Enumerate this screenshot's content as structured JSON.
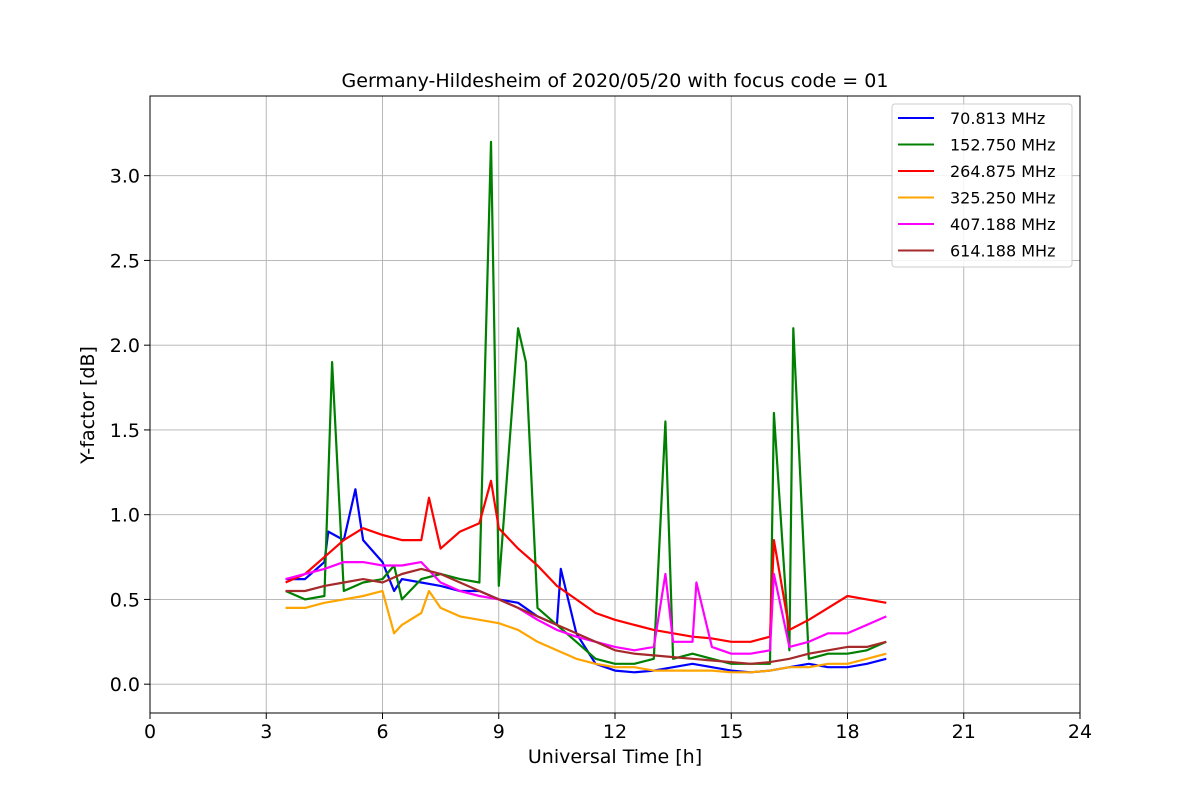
{
  "chart_data": {
    "type": "line",
    "title": "Germany-Hildesheim of 2020/05/20 with focus code = 01",
    "xlabel": "Universal Time [h]",
    "ylabel": "Y-factor [dB]",
    "xlim": [
      0,
      24
    ],
    "ylim": [
      -0.17,
      3.47
    ],
    "xticks": [
      0,
      3,
      6,
      9,
      12,
      15,
      18,
      21,
      24
    ],
    "xtick_labels": [
      "0",
      "3",
      "6",
      "9",
      "12",
      "15",
      "18",
      "21",
      "24"
    ],
    "yticks": [
      0.0,
      0.5,
      1.0,
      1.5,
      2.0,
      2.5,
      3.0
    ],
    "ytick_labels": [
      "0.0",
      "0.5",
      "1.0",
      "1.5",
      "2.0",
      "2.5",
      "3.0"
    ],
    "grid": true,
    "legend_position": "top-right",
    "series": [
      {
        "name": " 70.813 MHz",
        "color": "#0000ff",
        "x": [
          3.5,
          4.0,
          4.5,
          4.6,
          5.0,
          5.3,
          5.5,
          6.0,
          6.3,
          6.5,
          7.0,
          7.5,
          8.0,
          8.5,
          9.0,
          9.5,
          10.0,
          10.5,
          10.6,
          11.0,
          11.5,
          12.0,
          12.5,
          13.0,
          13.5,
          14.0,
          14.5,
          15.0,
          15.5,
          16.0,
          16.5,
          17.0,
          17.5,
          18.0,
          18.5,
          19.0
        ],
        "y": [
          0.62,
          0.62,
          0.72,
          0.9,
          0.85,
          1.15,
          0.85,
          0.72,
          0.55,
          0.62,
          0.6,
          0.58,
          0.55,
          0.55,
          0.5,
          0.48,
          0.4,
          0.35,
          0.68,
          0.3,
          0.12,
          0.08,
          0.07,
          0.08,
          0.1,
          0.12,
          0.1,
          0.08,
          0.07,
          0.08,
          0.1,
          0.12,
          0.1,
          0.1,
          0.12,
          0.15
        ]
      },
      {
        "name": "152.750 MHz",
        "color": "#008000",
        "x": [
          3.5,
          4.0,
          4.5,
          4.7,
          5.0,
          5.5,
          6.0,
          6.3,
          6.5,
          7.0,
          7.5,
          8.0,
          8.5,
          8.8,
          9.0,
          9.5,
          9.7,
          10.0,
          10.5,
          11.0,
          11.5,
          12.0,
          12.5,
          13.0,
          13.3,
          13.5,
          14.0,
          14.5,
          15.0,
          15.5,
          16.0,
          16.1,
          16.5,
          16.6,
          17.0,
          17.5,
          18.0,
          18.5,
          19.0
        ],
        "y": [
          0.55,
          0.5,
          0.52,
          1.9,
          0.55,
          0.6,
          0.62,
          0.7,
          0.5,
          0.62,
          0.65,
          0.62,
          0.6,
          3.2,
          0.58,
          2.1,
          1.9,
          0.45,
          0.35,
          0.25,
          0.15,
          0.12,
          0.12,
          0.15,
          1.55,
          0.15,
          0.18,
          0.15,
          0.12,
          0.12,
          0.12,
          1.6,
          0.2,
          2.1,
          0.15,
          0.18,
          0.18,
          0.2,
          0.25
        ]
      },
      {
        "name": "264.875 MHz",
        "color": "#ff0000",
        "x": [
          3.5,
          4.0,
          4.5,
          5.0,
          5.5,
          6.0,
          6.5,
          7.0,
          7.2,
          7.5,
          8.0,
          8.5,
          8.8,
          9.0,
          9.5,
          10.0,
          10.5,
          11.0,
          11.5,
          12.0,
          12.5,
          13.0,
          13.5,
          14.0,
          14.5,
          15.0,
          15.5,
          16.0,
          16.1,
          16.5,
          17.0,
          17.5,
          18.0,
          18.5,
          19.0
        ],
        "y": [
          0.6,
          0.65,
          0.75,
          0.85,
          0.92,
          0.88,
          0.85,
          0.85,
          1.1,
          0.8,
          0.9,
          0.95,
          1.2,
          0.92,
          0.8,
          0.7,
          0.58,
          0.5,
          0.42,
          0.38,
          0.35,
          0.32,
          0.3,
          0.28,
          0.27,
          0.25,
          0.25,
          0.28,
          0.85,
          0.32,
          0.38,
          0.45,
          0.52,
          0.5,
          0.48
        ]
      },
      {
        "name": "325.250 MHz",
        "color": "#ffa500",
        "x": [
          3.5,
          4.0,
          4.5,
          5.0,
          5.5,
          6.0,
          6.3,
          6.5,
          7.0,
          7.2,
          7.5,
          8.0,
          8.5,
          9.0,
          9.5,
          10.0,
          10.5,
          11.0,
          11.5,
          12.0,
          12.5,
          13.0,
          13.5,
          14.0,
          14.5,
          15.0,
          15.5,
          16.0,
          16.5,
          17.0,
          17.5,
          18.0,
          18.5,
          19.0
        ],
        "y": [
          0.45,
          0.45,
          0.48,
          0.5,
          0.52,
          0.55,
          0.3,
          0.35,
          0.42,
          0.55,
          0.45,
          0.4,
          0.38,
          0.36,
          0.32,
          0.25,
          0.2,
          0.15,
          0.12,
          0.1,
          0.1,
          0.08,
          0.08,
          0.08,
          0.08,
          0.07,
          0.07,
          0.08,
          0.1,
          0.1,
          0.12,
          0.12,
          0.15,
          0.18
        ]
      },
      {
        "name": "407.188 MHz",
        "color": "#ff00ff",
        "x": [
          3.5,
          4.0,
          4.5,
          5.0,
          5.5,
          6.0,
          6.5,
          7.0,
          7.5,
          8.0,
          8.5,
          9.0,
          9.5,
          10.0,
          10.5,
          11.0,
          11.5,
          12.0,
          12.5,
          13.0,
          13.3,
          13.5,
          14.0,
          14.1,
          14.5,
          15.0,
          15.5,
          16.0,
          16.1,
          16.5,
          17.0,
          17.5,
          18.0,
          18.5,
          19.0
        ],
        "y": [
          0.62,
          0.65,
          0.68,
          0.72,
          0.72,
          0.7,
          0.7,
          0.72,
          0.6,
          0.55,
          0.52,
          0.5,
          0.45,
          0.38,
          0.32,
          0.28,
          0.25,
          0.22,
          0.2,
          0.22,
          0.65,
          0.25,
          0.25,
          0.6,
          0.22,
          0.18,
          0.18,
          0.2,
          0.65,
          0.22,
          0.25,
          0.3,
          0.3,
          0.35,
          0.4
        ]
      },
      {
        "name": "614.188 MHz",
        "color": "#a52a2a",
        "x": [
          3.5,
          4.0,
          4.5,
          5.0,
          5.5,
          6.0,
          6.5,
          7.0,
          7.5,
          8.0,
          8.5,
          9.0,
          9.5,
          10.0,
          10.5,
          11.0,
          11.5,
          12.0,
          12.5,
          13.0,
          13.5,
          14.0,
          14.5,
          15.0,
          15.5,
          16.0,
          16.5,
          17.0,
          17.5,
          18.0,
          18.5,
          19.0
        ],
        "y": [
          0.55,
          0.55,
          0.58,
          0.6,
          0.62,
          0.6,
          0.65,
          0.68,
          0.65,
          0.6,
          0.55,
          0.5,
          0.45,
          0.4,
          0.35,
          0.3,
          0.25,
          0.2,
          0.18,
          0.17,
          0.16,
          0.15,
          0.14,
          0.13,
          0.12,
          0.13,
          0.15,
          0.18,
          0.2,
          0.22,
          0.22,
          0.25
        ]
      }
    ]
  }
}
